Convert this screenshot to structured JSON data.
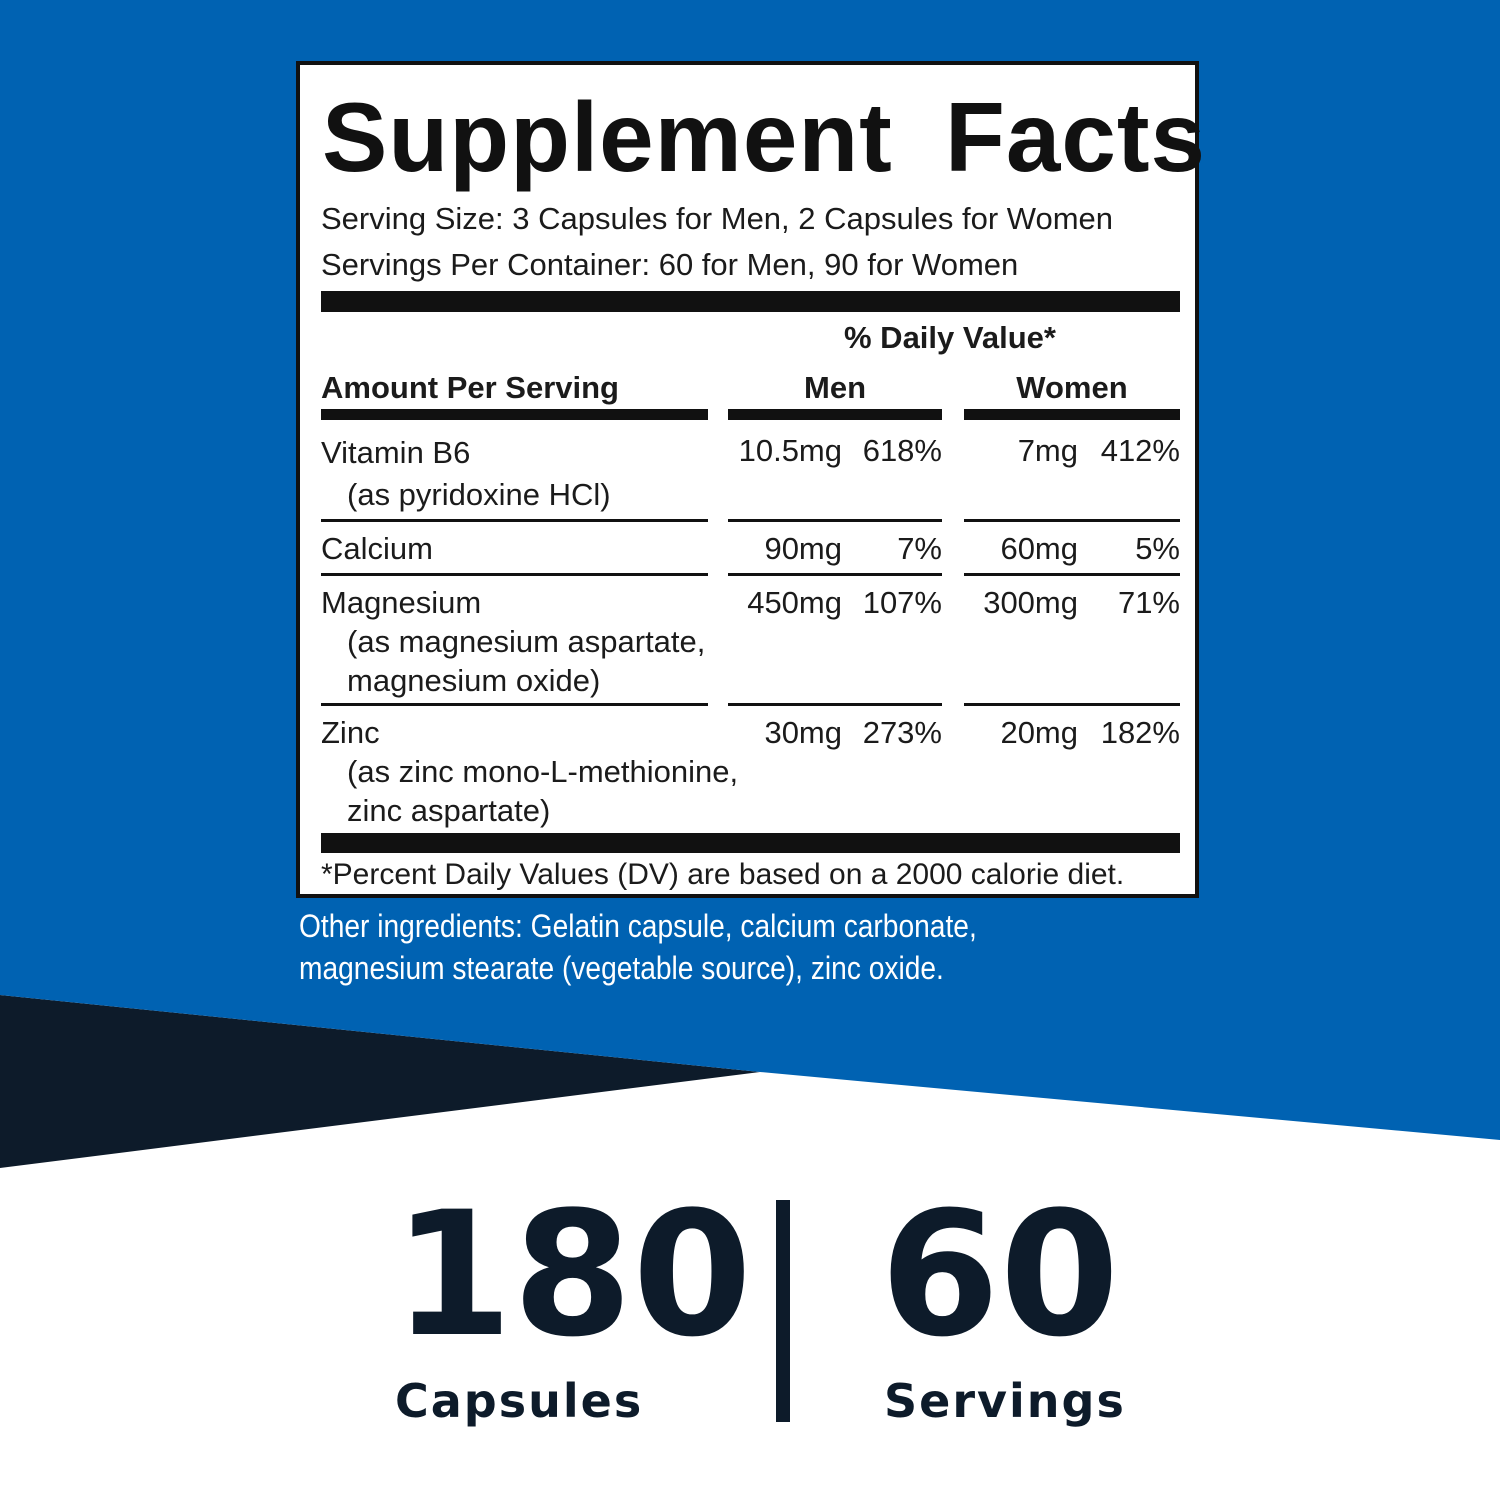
{
  "colors": {
    "brand_blue": "#0062b2",
    "dark_navy": "#0d1b2a",
    "white": "#ffffff",
    "ink": "#111111"
  },
  "label": {
    "title": "Supplement Facts",
    "serving_size": "Serving Size: 3 Capsules for Men, 2 Capsules for Women",
    "servings_per_container": "Servings Per Container: 60 for Men, 90 for Women",
    "daily_value_header": "% Daily Value*",
    "amount_header": "Amount Per Serving",
    "men_header": "Men",
    "women_header": "Women",
    "rows": [
      {
        "name": "Vitamin B6",
        "source": [
          "(as pyridoxine HCl)"
        ],
        "men_amount": "10.5mg",
        "men_dv": "618%",
        "women_amount": "7mg",
        "women_dv": "412%"
      },
      {
        "name": "Calcium",
        "source": [],
        "men_amount": "90mg",
        "men_dv": "7%",
        "women_amount": "60mg",
        "women_dv": "5%"
      },
      {
        "name": "Magnesium",
        "source": [
          "(as magnesium aspartate,",
          "magnesium oxide)"
        ],
        "men_amount": "450mg",
        "men_dv": "107%",
        "women_amount": "300mg",
        "women_dv": "71%"
      },
      {
        "name": "Zinc",
        "source": [
          "(as zinc mono-L-methionine,",
          "zinc aspartate)"
        ],
        "men_amount": "30mg",
        "men_dv": "273%",
        "women_amount": "20mg",
        "women_dv": "182%"
      }
    ],
    "footnote": "*Percent Daily Values (DV) are based on a 2000 calorie diet."
  },
  "other_ingredients": "Other ingredients: Gelatin capsule, calcium carbonate, magnesium stearate (vegetable source), zinc oxide.",
  "counts": {
    "capsules_number": "180",
    "capsules_label": "Capsules",
    "servings_number": "60",
    "servings_label": "Servings"
  }
}
